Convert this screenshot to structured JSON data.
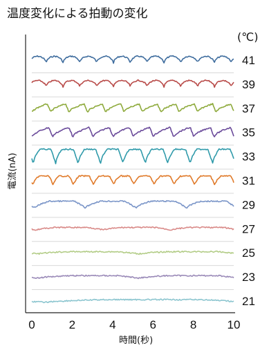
{
  "chart_data": {
    "type": "line",
    "title": "温度変化による拍動の変化",
    "xlabel": "時間(秒)",
    "ylabel": "電流(nA)",
    "unit_label": "(℃)",
    "x_ticks": [
      "0",
      "2",
      "4",
      "6",
      "8",
      "10"
    ],
    "xlim": [
      0,
      10
    ],
    "grid": true,
    "series": [
      {
        "name": "41",
        "color": "#3f6d9e",
        "beats": 12,
        "amplitude": 0.42,
        "shape": "rounded"
      },
      {
        "name": "39",
        "color": "#b84a48",
        "beats": 12,
        "amplitude": 0.4,
        "shape": "rounded"
      },
      {
        "name": "37",
        "color": "#8eaa3c",
        "beats": 11,
        "amplitude": 0.48,
        "shape": "sawtooth"
      },
      {
        "name": "35",
        "color": "#6a4a9a",
        "beats": 10,
        "amplitude": 0.55,
        "shape": "sawtooth"
      },
      {
        "name": "33",
        "color": "#2f9aaa",
        "beats": 9,
        "amplitude": 0.8,
        "shape": "spike"
      },
      {
        "name": "31",
        "color": "#e07a2a",
        "beats": 10,
        "amplitude": 0.5,
        "shape": "spike"
      },
      {
        "name": "29",
        "color": "#7a95c8",
        "beats": 4,
        "amplitude": 0.38,
        "shape": "spike"
      },
      {
        "name": "27",
        "color": "#d98a88",
        "beats": 3,
        "amplitude": 0.14,
        "shape": "spike"
      },
      {
        "name": "25",
        "color": "#b2cc86",
        "beats": 2,
        "amplitude": 0.12,
        "shape": "spike"
      },
      {
        "name": "23",
        "color": "#9a8ab8",
        "beats": 2,
        "amplitude": 0.14,
        "shape": "spike"
      },
      {
        "name": "21",
        "color": "#8bc5cf",
        "beats": 1,
        "amplitude": 0.15,
        "shape": "spike"
      }
    ]
  }
}
